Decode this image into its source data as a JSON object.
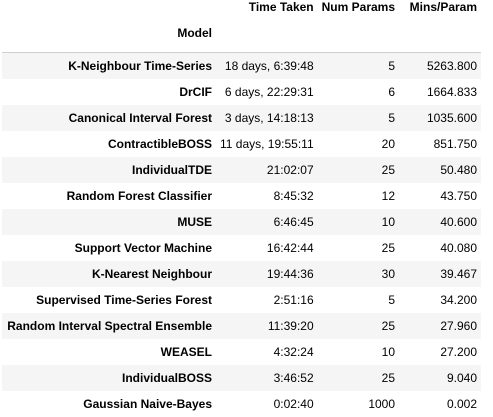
{
  "table": {
    "index_name": "Model",
    "columns": [
      "Time Taken",
      "Num Params",
      "Mins/Param"
    ],
    "rows": [
      {
        "model": "K-Neighbour Time-Series",
        "time": "18 days, 6:39:48",
        "params": "5",
        "mins": "5263.800"
      },
      {
        "model": "DrCIF",
        "time": "6 days, 22:29:31",
        "params": "6",
        "mins": "1664.833"
      },
      {
        "model": "Canonical Interval Forest",
        "time": "3 days, 14:18:13",
        "params": "5",
        "mins": "1035.600"
      },
      {
        "model": "ContractibleBOSS",
        "time": "11 days, 19:55:11",
        "params": "20",
        "mins": "851.750"
      },
      {
        "model": "IndividualTDE",
        "time": "21:02:07",
        "params": "25",
        "mins": "50.480"
      },
      {
        "model": "Random Forest Classifier",
        "time": "8:45:32",
        "params": "12",
        "mins": "43.750"
      },
      {
        "model": "MUSE",
        "time": "6:46:45",
        "params": "10",
        "mins": "40.600"
      },
      {
        "model": "Support Vector Machine",
        "time": "16:42:44",
        "params": "25",
        "mins": "40.080"
      },
      {
        "model": "K-Nearest Neighbour",
        "time": "19:44:36",
        "params": "30",
        "mins": "39.467"
      },
      {
        "model": "Supervised Time-Series Forest",
        "time": "2:51:16",
        "params": "5",
        "mins": "34.200"
      },
      {
        "model": "Random Interval Spectral Ensemble",
        "time": "11:39:20",
        "params": "25",
        "mins": "27.960"
      },
      {
        "model": "WEASEL",
        "time": "4:32:24",
        "params": "10",
        "mins": "27.200"
      },
      {
        "model": "IndividualBOSS",
        "time": "3:46:52",
        "params": "25",
        "mins": "9.040"
      },
      {
        "model": "Gaussian Naive-Bayes",
        "time": "0:02:40",
        "params": "1000",
        "mins": "0.002"
      }
    ]
  }
}
